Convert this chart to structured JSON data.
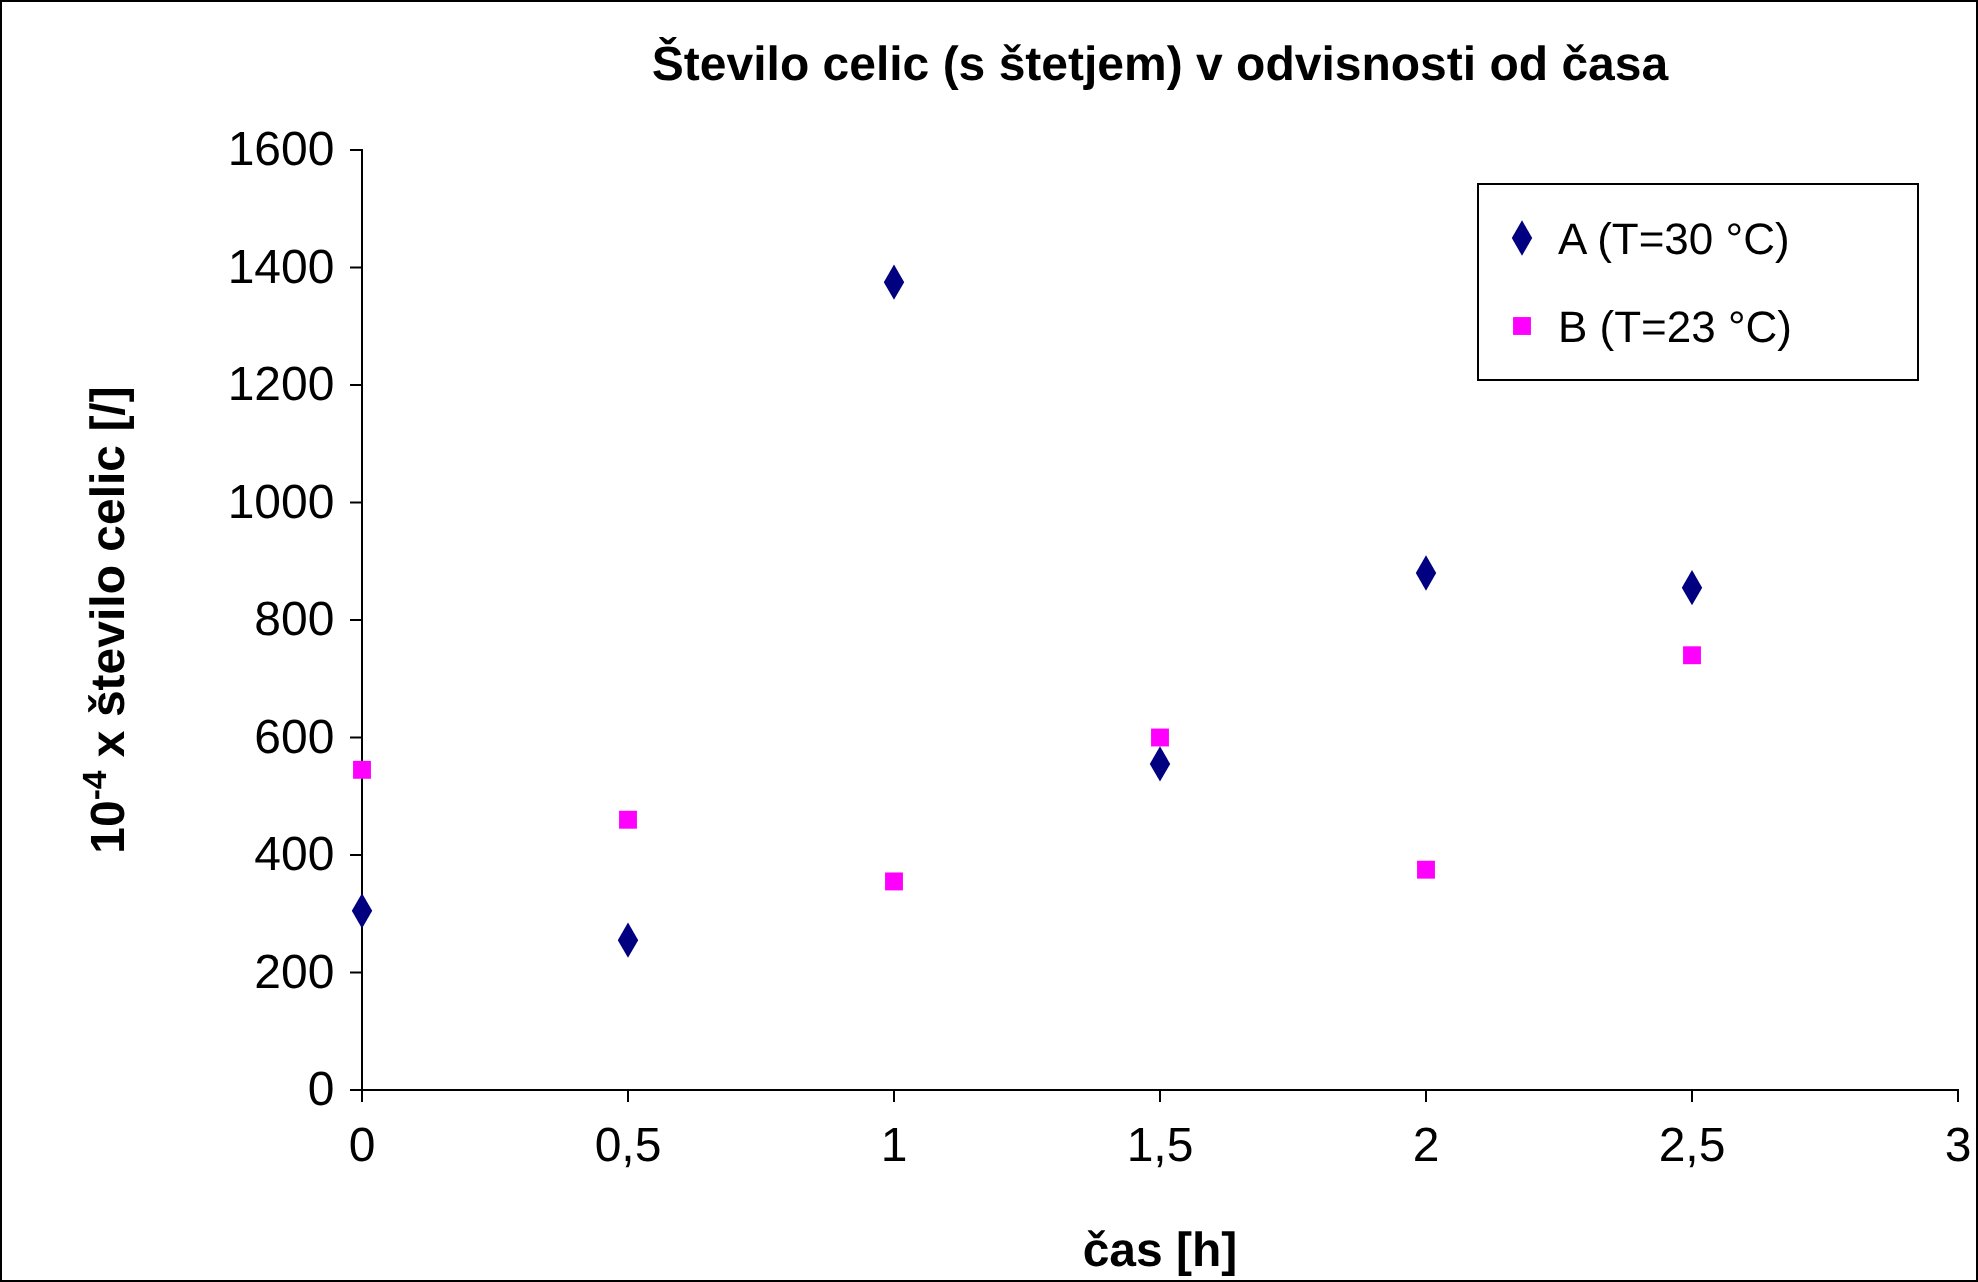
{
  "chart_data": {
    "type": "scatter",
    "title": "Število celic (s štetjem) v odvisnosti od časa",
    "xlabel": "čas [h]",
    "ylabel": "10$^{-4}$ x število celic [/]",
    "xlim": [
      0,
      3
    ],
    "xticks": [
      0,
      {
        "value": 0.5,
        "label": "0,5"
      },
      1,
      {
        "value": 1.5,
        "label": "1,5"
      },
      2,
      {
        "value": 2.5,
        "label": "2,5"
      },
      3
    ],
    "ylim": [
      0,
      1600
    ],
    "yticks": [
      0,
      200,
      400,
      600,
      800,
      1000,
      1200,
      1400,
      1600
    ],
    "grid": false,
    "legend": "top right",
    "series": [
      {
        "name": "A (T=30 °C)",
        "color": "#000080",
        "marker": "diamond",
        "x": [
          0,
          0.5,
          1,
          1.5,
          2,
          2.5
        ],
        "values": [
          305,
          255,
          1375,
          555,
          880,
          855
        ]
      },
      {
        "name": "B (T=23 °C)",
        "color": "#ff00ff",
        "marker": "square",
        "x": [
          0,
          0.5,
          1,
          1.5,
          2,
          2.5
        ],
        "values": [
          545,
          460,
          355,
          600,
          375,
          740
        ]
      }
    ]
  }
}
